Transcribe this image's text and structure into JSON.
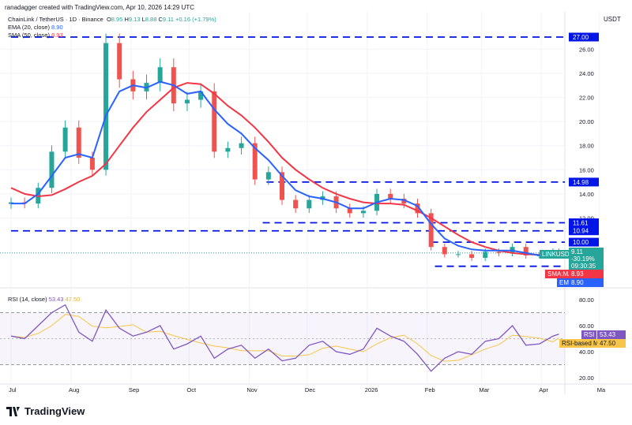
{
  "header": {
    "credit": "ranadagger created with TradingView.com, Apr 10, 2026 14:29 UTC",
    "currency": "USDT"
  },
  "symbol_legend": {
    "name": "ChainLink / TetherUS · 1D · Binance",
    "o_label": "O",
    "o": "8.95",
    "h_label": "H",
    "h": "9.13",
    "l_label": "L",
    "l": "8.88",
    "c_label": "C",
    "c": "9.11",
    "change": "+0.16 (+1.79%)"
  },
  "indicators": {
    "ema": {
      "label": "EMA (20, close)",
      "value": "8.90",
      "color": "#2962ff",
      "tag": "EMA"
    },
    "sma": {
      "label": "SMA (50, close)",
      "value": "8.93",
      "color": "#f23645",
      "tag": "SMA:MA"
    },
    "rsi": {
      "label": "RSI (14, close)",
      "value": "53.43",
      "ma_value": "47.50",
      "color": "#7e57c2",
      "ma_color": "#f7c548",
      "tag": "RSI",
      "ma_tag": "RSI-based MA"
    }
  },
  "price_tag": {
    "symbol": "LINKUSDT",
    "price": "9.11",
    "change": "-30.19%",
    "countdown": "09:30:35",
    "color": "#26a69a"
  },
  "footer": {
    "brand": "TradingView"
  },
  "chart_data": {
    "type": "candlestick",
    "title": "ChainLink / TetherUS · 1D · Binance",
    "ylim": [
      7.5,
      28
    ],
    "y_ticks": [
      "26.00",
      "24.00",
      "22.00",
      "20.00",
      "18.00",
      "16.00",
      "14.00",
      "12.00"
    ],
    "x_ticks": [
      "Jul",
      "Aug",
      "Sep",
      "Oct",
      "Nov",
      "Dec",
      "2026",
      "Feb",
      "Mar",
      "Apr",
      "Ma"
    ],
    "x_tick_dates": [
      "2025-07-01",
      "2025-08-01",
      "2025-09-01",
      "2025-10-01",
      "2025-11-01",
      "2025-12-01",
      "2026-01-01",
      "2026-02-01",
      "2026-03-01",
      "2026-04-01",
      "2026-05-01"
    ],
    "grid": true,
    "levels": [
      {
        "value": 27.0,
        "label": "27.00",
        "from": "2025-07-01"
      },
      {
        "value": 14.98,
        "label": "14.98",
        "from": "2025-11-10"
      },
      {
        "value": 11.61,
        "label": "11.61",
        "from": "2025-11-08"
      },
      {
        "value": 10.94,
        "label": "10.94",
        "from": "2025-07-01"
      },
      {
        "value": 10.0,
        "label": "10.00",
        "from": "2026-02-03"
      },
      {
        "value": 8.0,
        "label": "8.00",
        "from": "2026-02-05"
      }
    ],
    "dates": [
      "2025-07-01",
      "2025-07-08",
      "2025-07-15",
      "2025-07-22",
      "2025-07-29",
      "2025-08-05",
      "2025-08-12",
      "2025-08-19",
      "2025-08-26",
      "2025-09-02",
      "2025-09-09",
      "2025-09-16",
      "2025-09-23",
      "2025-09-30",
      "2025-10-07",
      "2025-10-14",
      "2025-10-21",
      "2025-10-28",
      "2025-11-04",
      "2025-11-11",
      "2025-11-18",
      "2025-11-25",
      "2025-12-02",
      "2025-12-09",
      "2025-12-16",
      "2025-12-23",
      "2025-12-30",
      "2026-01-06",
      "2026-01-13",
      "2026-01-20",
      "2026-01-27",
      "2026-02-03",
      "2026-02-10",
      "2026-02-17",
      "2026-02-24",
      "2026-03-03",
      "2026-03-10",
      "2026-03-17",
      "2026-03-24",
      "2026-03-31",
      "2026-04-07",
      "2026-04-10"
    ],
    "close": [
      13.3,
      13.2,
      14.5,
      17.5,
      19.5,
      17.0,
      16.0,
      26.5,
      23.5,
      22.5,
      23.2,
      24.5,
      21.5,
      21.8,
      22.5,
      17.5,
      17.8,
      18.2,
      15.2,
      15.8,
      13.5,
      12.8,
      13.5,
      13.8,
      12.8,
      12.4,
      12.6,
      14.0,
      13.6,
      13.2,
      12.4,
      9.6,
      9.0,
      9.0,
      8.7,
      9.2,
      9.1,
      9.6,
      8.9,
      8.9,
      9.2,
      9.11
    ],
    "ema20": [
      13.2,
      13.2,
      14.0,
      15.5,
      17.0,
      17.3,
      17.0,
      20.5,
      22.5,
      23.0,
      22.8,
      23.3,
      23.0,
      22.3,
      22.5,
      21.0,
      19.8,
      19.0,
      17.8,
      16.8,
      15.5,
      14.3,
      13.8,
      13.6,
      13.3,
      12.8,
      12.8,
      13.3,
      13.6,
      13.5,
      13.0,
      11.5,
      10.3,
      9.7,
      9.4,
      9.3,
      9.3,
      9.3,
      9.1,
      8.9,
      8.9,
      8.9
    ],
    "sma50": [
      14.5,
      14.0,
      13.8,
      13.9,
      14.4,
      15.0,
      15.5,
      16.5,
      18.0,
      19.5,
      20.8,
      21.8,
      22.8,
      23.2,
      23.1,
      22.3,
      21.3,
      20.5,
      19.5,
      18.3,
      17.0,
      16.0,
      15.2,
      14.5,
      14.0,
      13.6,
      13.3,
      13.2,
      13.2,
      13.1,
      12.6,
      12.0,
      11.3,
      10.6,
      10.0,
      9.6,
      9.3,
      9.1,
      9.0,
      8.95,
      8.93,
      8.93
    ],
    "rsi": [
      52,
      50,
      60,
      70,
      76,
      55,
      48,
      72,
      58,
      52,
      55,
      60,
      42,
      46,
      52,
      35,
      42,
      45,
      35,
      42,
      33,
      35,
      45,
      48,
      40,
      38,
      42,
      58,
      52,
      48,
      38,
      25,
      35,
      40,
      38,
      48,
      50,
      60,
      45,
      46,
      52,
      53.43
    ],
    "rsi_ylim": [
      15,
      85
    ],
    "rsi_ticks": [
      "80.00",
      "60.00",
      "40.00",
      "20.00"
    ],
    "rsi_bands": [
      70,
      30
    ]
  }
}
